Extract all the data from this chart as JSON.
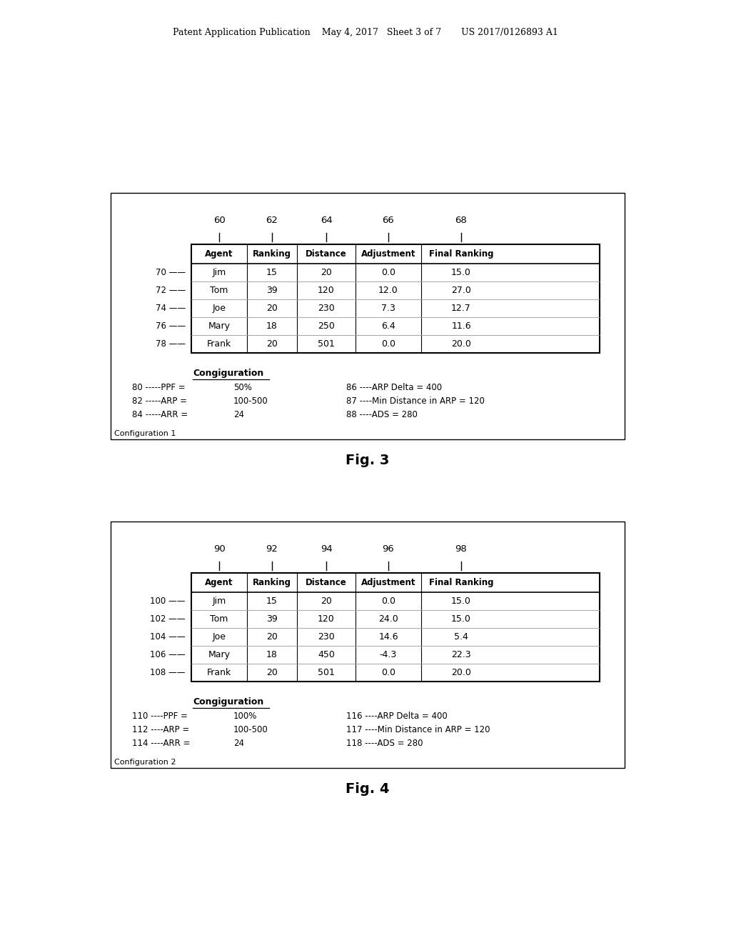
{
  "header_text": "Patent Application Publication    May 4, 2017   Sheet 3 of 7       US 2017/0126893 A1",
  "fig3_title": "Fig. 3",
  "fig4_title": "Fig. 4",
  "fig3": {
    "col_numbers": [
      "60",
      "62",
      "64",
      "66",
      "68"
    ],
    "col_headers": [
      "Agent",
      "Ranking",
      "Distance",
      "Adjustment",
      "Final Ranking"
    ],
    "row_numbers": [
      "70",
      "72",
      "74",
      "76",
      "78"
    ],
    "rows": [
      [
        "Jim",
        "15",
        "20",
        "0.0",
        "15.0"
      ],
      [
        "Tom",
        "39",
        "120",
        "12.0",
        "27.0"
      ],
      [
        "Joe",
        "20",
        "230",
        "7.3",
        "12.7"
      ],
      [
        "Mary",
        "18",
        "250",
        "6.4",
        "11.6"
      ],
      [
        "Frank",
        "20",
        "501",
        "0.0",
        "20.0"
      ]
    ],
    "config_title": "Congiguration",
    "config_left": [
      [
        "80 -----PPF =",
        "50%"
      ],
      [
        "82 -----ARP =",
        "100-500"
      ],
      [
        "84 -----ARR =",
        "24"
      ]
    ],
    "config_right": [
      "86 ----ARP Delta = 400",
      "87 ----Min Distance in ARP = 120",
      "88 ----ADS = 280"
    ],
    "footer": "Configuration 1"
  },
  "fig4": {
    "col_numbers": [
      "90",
      "92",
      "94",
      "96",
      "98"
    ],
    "col_headers": [
      "Agent",
      "Ranking",
      "Distance",
      "Adjustment",
      "Final Ranking"
    ],
    "row_numbers": [
      "100",
      "102",
      "104",
      "106",
      "108"
    ],
    "rows": [
      [
        "Jim",
        "15",
        "20",
        "0.0",
        "15.0"
      ],
      [
        "Tom",
        "39",
        "120",
        "24.0",
        "15.0"
      ],
      [
        "Joe",
        "20",
        "230",
        "14.6",
        "5.4"
      ],
      [
        "Mary",
        "18",
        "450",
        "-4.3",
        "22.3"
      ],
      [
        "Frank",
        "20",
        "501",
        "0.0",
        "20.0"
      ]
    ],
    "config_title": "Congiguration",
    "config_left": [
      [
        "110 ----PPF =",
        "100%"
      ],
      [
        "112 ----ARP =",
        "100-500"
      ],
      [
        "114 ----ARR =",
        "24"
      ]
    ],
    "config_right": [
      "116 ----ARP Delta = 400",
      "117 ----Min Distance in ARP = 120",
      "118 ----ADS = 280"
    ],
    "footer": "Configuration 2"
  }
}
